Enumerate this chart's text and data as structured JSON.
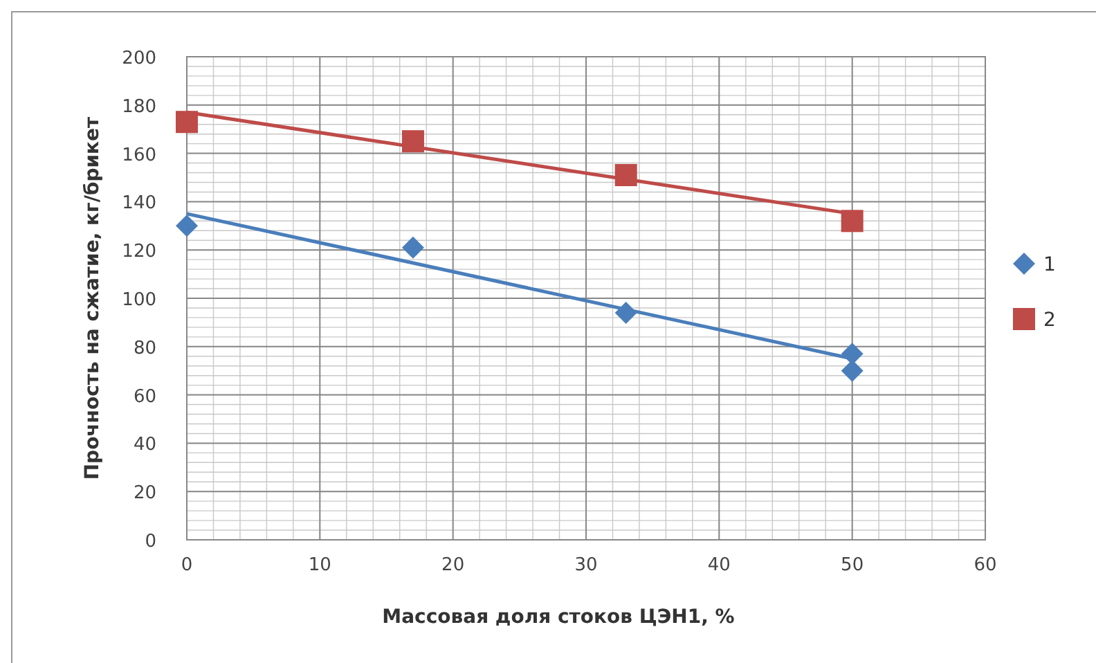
{
  "chart_data": {
    "type": "scatter",
    "xlabel": "Массовая доля стоков ЦЭН1, %",
    "ylabel": "Прочность на сжатие, кг/брикет",
    "xlim": [
      0,
      60
    ],
    "ylim": [
      0,
      200
    ],
    "xticks": [
      0,
      10,
      20,
      30,
      40,
      50,
      60
    ],
    "yticks": [
      0,
      20,
      40,
      60,
      80,
      100,
      120,
      140,
      160,
      180,
      200
    ],
    "grid": true,
    "legend": "right",
    "series": [
      {
        "name": "1",
        "color": "#4a7ebb",
        "marker": "diamond",
        "x": [
          0,
          17,
          33,
          50,
          50
        ],
        "values": [
          130,
          121,
          94,
          77,
          70
        ]
      },
      {
        "name": "2",
        "color": "#be4b48",
        "marker": "square",
        "x": [
          0,
          17,
          33,
          50
        ],
        "values": [
          173,
          165,
          151,
          132
        ]
      },
      {
        "type": "line",
        "color": "#4a7ebb",
        "marker": "none",
        "x": [
          0,
          50
        ],
        "values": [
          135,
          75
        ]
      },
      {
        "type": "line",
        "color": "#be4b48",
        "marker": "none",
        "x": [
          0,
          50
        ],
        "values": [
          177,
          135
        ]
      }
    ]
  }
}
